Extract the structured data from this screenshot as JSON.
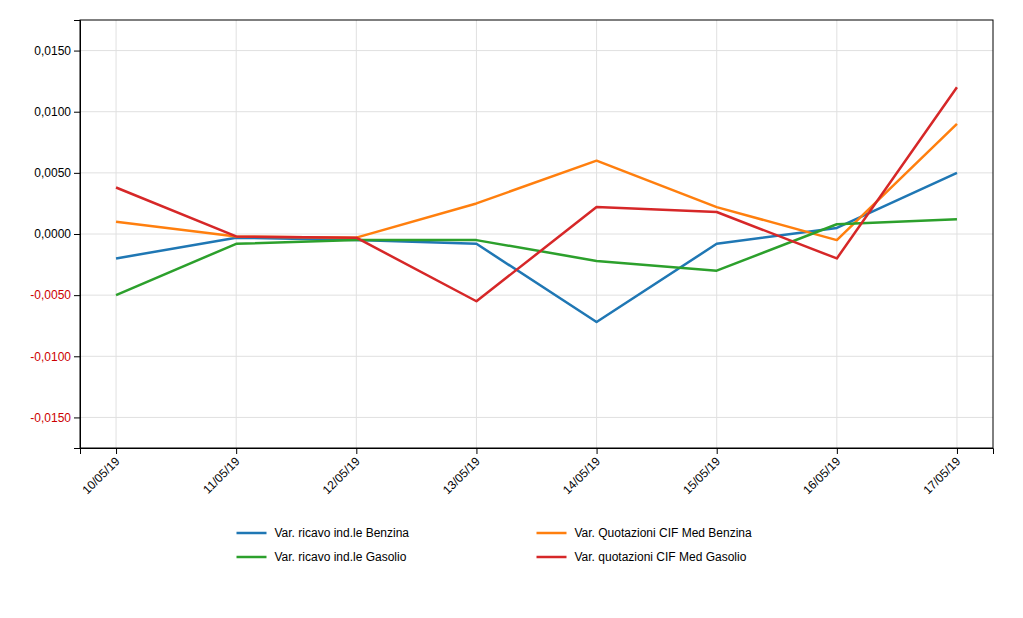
{
  "chart_data": {
    "type": "line",
    "categories": [
      "10/05/19",
      "11/05/19",
      "12/05/19",
      "13/05/19",
      "14/05/19",
      "15/05/19",
      "16/05/19",
      "17/05/19"
    ],
    "series": [
      {
        "name": "Var. ricavo ind.le Benzina",
        "values": [
          -0.002,
          -0.0003,
          -0.0005,
          -0.0008,
          -0.0072,
          -0.0008,
          0.0005,
          0.005
        ]
      },
      {
        "name": "Var. Quotazioni CIF Med Benzina",
        "values": [
          0.001,
          -0.0002,
          -0.0003,
          0.0025,
          0.006,
          0.0022,
          -0.0005,
          0.009
        ]
      },
      {
        "name": "Var. ricavo ind.le Gasolio",
        "values": [
          -0.005,
          -0.0008,
          -0.0005,
          -0.0005,
          -0.0022,
          -0.003,
          0.0008,
          0.0012
        ]
      },
      {
        "name": "Var. quotazioni CIF Med Gasolio",
        "values": [
          0.0038,
          -0.0002,
          -0.0003,
          -0.0055,
          0.0022,
          0.0018,
          -0.002,
          0.012
        ]
      }
    ],
    "ylim": [
      -0.0175,
      0.0175
    ],
    "yticks": [
      {
        "value": -0.015,
        "label": "-0,0150"
      },
      {
        "value": -0.01,
        "label": "-0,0100"
      },
      {
        "value": -0.005,
        "label": "-0,0050"
      },
      {
        "value": 0,
        "label": "0,0000"
      },
      {
        "value": 0.005,
        "label": "0,0050"
      },
      {
        "value": 0.01,
        "label": "0,0100"
      },
      {
        "value": 0.015,
        "label": "0,0150"
      }
    ],
    "grid": true,
    "legend": "bottom"
  }
}
